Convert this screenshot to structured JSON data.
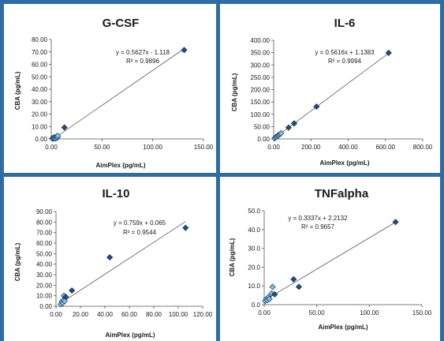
{
  "panels": [
    {
      "title": "G-CSF",
      "xlabel": "AimPlex (pg/mL)",
      "ylabel": "CBA (pg/mL)",
      "equation": "y = 0.5627x - 1.118",
      "r2": "R² = 0.9896",
      "xticks": [
        "0.00",
        "50.00",
        "100.00",
        "150.00"
      ],
      "yticks": [
        "0.00",
        "10.00",
        "20.00",
        "30.00",
        "40.00",
        "50.00",
        "60.00",
        "70.00",
        "80.00"
      ]
    },
    {
      "title": "IL-6",
      "xlabel": "AimPlex (pg/mL)",
      "ylabel": "CBA (pg/mL)",
      "equation": "y = 0.5616x + 1.1383",
      "r2": "R² = 0.9994",
      "xticks": [
        "0.00",
        "200.00",
        "400.00",
        "600.00",
        "800.00"
      ],
      "yticks": [
        "0.00",
        "50.00",
        "100.00",
        "150.00",
        "200.00",
        "250.00",
        "300.00",
        "350.00",
        "400.00"
      ]
    },
    {
      "title": "IL-10",
      "xlabel": "AimPlex (pg/mL)",
      "ylabel": "CBA (pg/mL)",
      "equation": "y = 0.759x + 0.065",
      "r2": "R² = 0.9544",
      "xticks": [
        "0.00",
        "20.00",
        "40.00",
        "60.00",
        "80.00",
        "100.00",
        "120.00"
      ],
      "yticks": [
        "0.00",
        "10.00",
        "20.00",
        "30.00",
        "40.00",
        "50.00",
        "60.00",
        "70.00",
        "80.00",
        "90.00"
      ]
    },
    {
      "title": "TNFalpha",
      "xlabel": "AimPlex (pg/mL)",
      "ylabel": "CBA (pg/mL)",
      "equation": "y = 0.3337x + 2.2132",
      "r2": "R² = 0.9657",
      "xticks": [
        "0.00",
        "50.00",
        "100.00",
        "150.00"
      ],
      "yticks": [
        "0.0",
        "10.0",
        "20.0",
        "30.0",
        "40.0",
        "50.0"
      ]
    }
  ],
  "chart_data": [
    {
      "type": "scatter",
      "title": "G-CSF",
      "xlabel": "AimPlex (pg/mL)",
      "ylabel": "CBA (pg/mL)",
      "xlim": [
        0,
        150
      ],
      "ylim": [
        0,
        80
      ],
      "grid": false,
      "trendline": {
        "slope": 0.5627,
        "intercept": -1.118,
        "r2": 0.9896
      },
      "series": [
        {
          "x": [
            1,
            2,
            2.5,
            3,
            3.5,
            4,
            5,
            5.5,
            6,
            6.5,
            13,
            131
          ],
          "y": [
            0.5,
            0.3,
            1.2,
            0.6,
            1.0,
            0.4,
            1.8,
            0.8,
            1.5,
            2.5,
            9.2,
            71.5
          ]
        }
      ]
    },
    {
      "type": "scatter",
      "title": "IL-6",
      "xlabel": "AimPlex (pg/mL)",
      "ylabel": "CBA (pg/mL)",
      "xlim": [
        0,
        800
      ],
      "ylim": [
        0,
        400
      ],
      "grid": false,
      "trendline": {
        "slope": 0.5616,
        "intercept": 1.1383,
        "r2": 0.9994
      },
      "series": [
        {
          "x": [
            5,
            10,
            15,
            20,
            25,
            30,
            35,
            40,
            80,
            110,
            230,
            617
          ],
          "y": [
            3,
            6,
            9,
            12,
            14,
            17,
            20,
            23,
            46,
            63,
            131,
            349
          ]
        }
      ]
    },
    {
      "type": "scatter",
      "title": "IL-10",
      "xlabel": "AimPlex (pg/mL)",
      "ylabel": "CBA (pg/mL)",
      "xlim": [
        0,
        120
      ],
      "ylim": [
        0,
        90
      ],
      "grid": false,
      "trendline": {
        "slope": 0.759,
        "intercept": 0.065,
        "r2": 0.9544
      },
      "series": [
        {
          "x": [
            4,
            5,
            5.5,
            6,
            6.5,
            7,
            8,
            13,
            44,
            106
          ],
          "y": [
            2,
            4.5,
            3,
            6,
            10,
            5,
            9,
            15,
            46.5,
            74.5
          ]
        }
      ]
    },
    {
      "type": "scatter",
      "title": "TNFalpha",
      "xlabel": "AimPlex (pg/mL)",
      "ylabel": "CBA (pg/mL)",
      "xlim": [
        0,
        150
      ],
      "ylim": [
        0,
        50
      ],
      "grid": false,
      "trendline": {
        "slope": 0.3337,
        "intercept": 2.2132,
        "r2": 0.9657
      },
      "series": [
        {
          "x": [
            1,
            2,
            3,
            4,
            5,
            7,
            8,
            10,
            28,
            33,
            125
          ],
          "y": [
            2,
            3,
            2.5,
            4,
            3,
            6,
            9.5,
            5.5,
            13.5,
            9.5,
            44
          ]
        }
      ]
    }
  ],
  "colors": {
    "frame": "#2e6da4",
    "marker_fill": "#1f4e8c",
    "marker_light": "#7fbfe6",
    "trendline": "#404040",
    "text": "#1a1a1a"
  }
}
